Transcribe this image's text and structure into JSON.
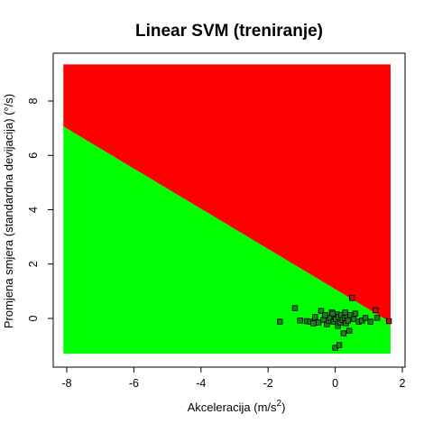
{
  "chart_data": {
    "type": "scatter",
    "title": "Linear SVM (treniranje)",
    "xlabel": {
      "text": "Akceleracija (m/s",
      "superscript": "2",
      "suffix": ")"
    },
    "ylabel": "Promjena smjera (standardna devijacija) (°/s)",
    "xlim": [
      -8.1,
      1.65
    ],
    "ylim": [
      -1.3,
      9.35
    ],
    "x_ticks": [
      -8,
      -6,
      -4,
      -2,
      0,
      2
    ],
    "y_ticks": [
      0,
      2,
      4,
      6,
      8
    ],
    "x_tick_labels": [
      "-8",
      "-6",
      "-4",
      "-2",
      "0",
      "2"
    ],
    "y_tick_labels": [
      "0",
      "2",
      "4",
      "6",
      "8"
    ],
    "decision_boundary": {
      "slope": -0.739,
      "intercept": 1.08
    },
    "regions": [
      {
        "name": "below-boundary",
        "color": "#00ff00"
      },
      {
        "name": "above-boundary",
        "color": "#ff0000"
      }
    ],
    "marker_colors": {
      "fill_green": "#1e7d1e",
      "fill_red": "#b01818",
      "stroke": "#000000"
    },
    "points": [
      {
        "x": -1.65,
        "y": -0.12
      },
      {
        "x": -1.2,
        "y": 0.38
      },
      {
        "x": -1.05,
        "y": -0.08
      },
      {
        "x": -0.85,
        "y": -0.1
      },
      {
        "x": -0.75,
        "y": -0.12
      },
      {
        "x": -0.6,
        "y": 0.05
      },
      {
        "x": -0.5,
        "y": -0.15
      },
      {
        "x": -0.42,
        "y": 0.28
      },
      {
        "x": -0.35,
        "y": -0.05
      },
      {
        "x": -0.3,
        "y": 0.12
      },
      {
        "x": -0.25,
        "y": -0.22
      },
      {
        "x": -0.2,
        "y": -0.08
      },
      {
        "x": -0.15,
        "y": 0.02
      },
      {
        "x": -0.1,
        "y": 0.22
      },
      {
        "x": -0.05,
        "y": -0.12
      },
      {
        "x": -0.02,
        "y": 0.08
      },
      {
        "x": 0.0,
        "y": -1.08
      },
      {
        "x": 0.02,
        "y": -0.02
      },
      {
        "x": 0.05,
        "y": 0.15
      },
      {
        "x": 0.08,
        "y": -0.28
      },
      {
        "x": 0.1,
        "y": 0.05
      },
      {
        "x": 0.12,
        "y": -0.98
      },
      {
        "x": 0.15,
        "y": -0.15
      },
      {
        "x": 0.18,
        "y": 0.12
      },
      {
        "x": 0.22,
        "y": -0.05
      },
      {
        "x": 0.25,
        "y": -0.55
      },
      {
        "x": 0.28,
        "y": 0.02
      },
      {
        "x": 0.32,
        "y": -0.18
      },
      {
        "x": 0.35,
        "y": 0.08
      },
      {
        "x": 0.38,
        "y": -0.08
      },
      {
        "x": 0.42,
        "y": -0.45
      },
      {
        "x": 0.45,
        "y": 0.12
      },
      {
        "x": 0.5,
        "y": 0.75
      },
      {
        "x": 0.55,
        "y": -0.02
      },
      {
        "x": 0.6,
        "y": 0.18
      },
      {
        "x": 0.7,
        "y": -0.12
      },
      {
        "x": 0.8,
        "y": -0.08
      },
      {
        "x": 0.9,
        "y": 0.02
      },
      {
        "x": 1.05,
        "y": -0.12
      },
      {
        "x": 1.2,
        "y": 0.3
      },
      {
        "x": 1.25,
        "y": 0.02
      },
      {
        "x": 1.6,
        "y": -0.1
      },
      {
        "x": -0.65,
        "y": -0.18
      },
      {
        "x": -0.08,
        "y": 0.18
      },
      {
        "x": 0.3,
        "y": 0.22
      }
    ]
  }
}
